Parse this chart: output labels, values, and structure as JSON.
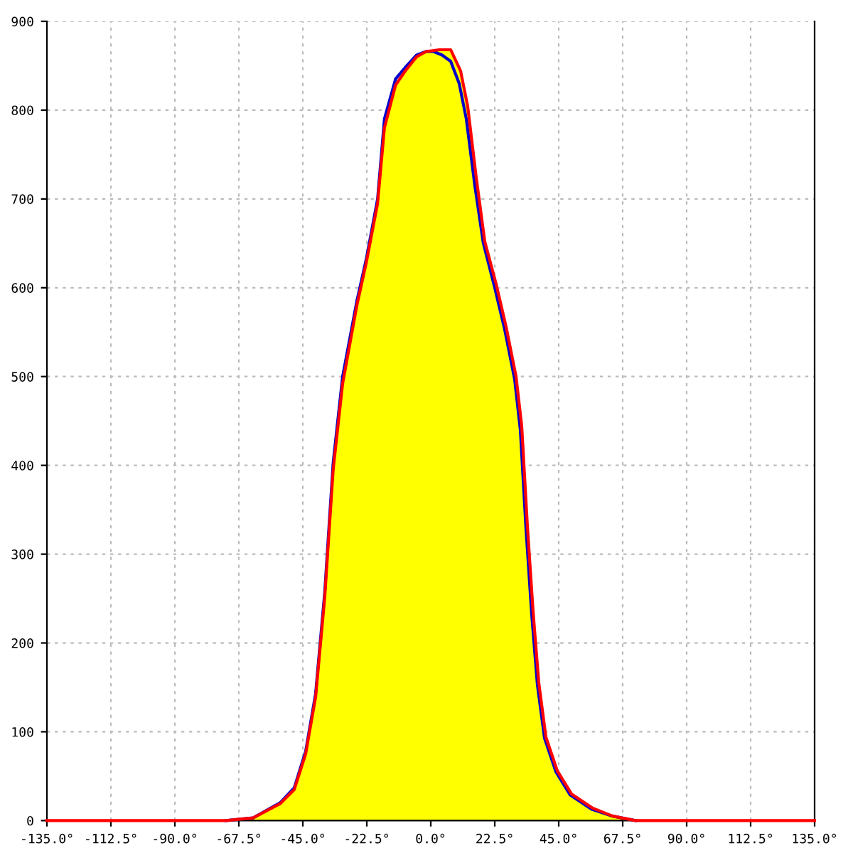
{
  "chart_data": {
    "type": "line",
    "xlim": [
      -135,
      135
    ],
    "ylim": [
      0,
      900
    ],
    "xticks": [
      {
        "value": -135,
        "label": "-135.0°"
      },
      {
        "value": -112.5,
        "label": "-112.5°"
      },
      {
        "value": -90,
        "label": "-90.0°"
      },
      {
        "value": -67.5,
        "label": "-67.5°"
      },
      {
        "value": -45,
        "label": "-45.0°"
      },
      {
        "value": -22.5,
        "label": "-22.5°"
      },
      {
        "value": 0,
        "label": "0.0°"
      },
      {
        "value": 22.5,
        "label": "22.5°"
      },
      {
        "value": 45,
        "label": "45.0°"
      },
      {
        "value": 67.5,
        "label": "67.5°"
      },
      {
        "value": 90,
        "label": "90.0°"
      },
      {
        "value": 112.5,
        "label": "112.5°"
      },
      {
        "value": 135,
        "label": "135.0°"
      }
    ],
    "yticks": [
      0,
      100,
      200,
      300,
      400,
      500,
      600,
      700,
      800,
      900
    ],
    "grid": true,
    "line_style": "solid",
    "marker": "none",
    "series": [
      {
        "type": "area",
        "color": "#ffff00",
        "x": [
          -72,
          -62.5,
          -53,
          -48,
          -44,
          -40.5,
          -37.3,
          -34.3,
          -31,
          -26,
          -22.7,
          -18.7,
          -16.3,
          -12.4,
          -9,
          -5,
          -1.7,
          3,
          7,
          10.5,
          13,
          16,
          19,
          23,
          26.5,
          30,
          32,
          34,
          36,
          38,
          40.5,
          44.5,
          49.5,
          57,
          64,
          72
        ],
        "values": [
          0,
          3,
          19,
          35,
          75,
          139,
          251,
          396,
          492,
          580,
          628,
          695,
          780,
          828,
          844,
          860,
          866,
          868,
          868,
          844,
          804,
          724,
          652,
          604,
          556,
          500,
          444,
          331,
          235,
          155,
          94,
          56,
          30,
          14,
          5,
          0
        ]
      },
      {
        "color": "#0000cc",
        "x": [
          -72,
          -62.5,
          -53,
          -48,
          -44,
          -40.5,
          -37.3,
          -34.3,
          -31,
          -26,
          -22.7,
          -18.7,
          -16.3,
          -12.4,
          -9,
          -5,
          -1.7,
          1,
          4,
          7,
          10,
          12.5,
          15.5,
          18.5,
          22.5,
          26,
          29.5,
          31.5,
          33.5,
          35.5,
          37.5,
          40,
          44,
          49,
          56.5,
          64,
          72
        ],
        "values": [
          0,
          3,
          20,
          37,
          78,
          143,
          257,
          404,
          500,
          585,
          632,
          700,
          790,
          835,
          848,
          862,
          866,
          866,
          862,
          855,
          830,
          790,
          715,
          650,
          600,
          553,
          497,
          440,
          328,
          232,
          153,
          93,
          55,
          29,
          13,
          5,
          0
        ]
      },
      {
        "color": "#ff0000",
        "x": [
          -135,
          -72,
          -62.5,
          -53,
          -48,
          -44,
          -40.5,
          -37.3,
          -34.3,
          -31,
          -26,
          -22.7,
          -18.7,
          -16.3,
          -12.4,
          -9,
          -5,
          -1.7,
          3,
          7,
          10.5,
          13,
          16,
          19,
          23,
          26.5,
          30,
          32,
          34,
          36,
          38,
          40.5,
          44.5,
          49.5,
          57,
          64,
          72,
          135
        ],
        "values": [
          0,
          0,
          3,
          19,
          35,
          75,
          139,
          251,
          396,
          492,
          580,
          628,
          695,
          780,
          828,
          844,
          860,
          866,
          868,
          868,
          844,
          804,
          724,
          652,
          604,
          556,
          500,
          444,
          331,
          235,
          155,
          94,
          56,
          30,
          14,
          5,
          0,
          0
        ]
      }
    ]
  }
}
